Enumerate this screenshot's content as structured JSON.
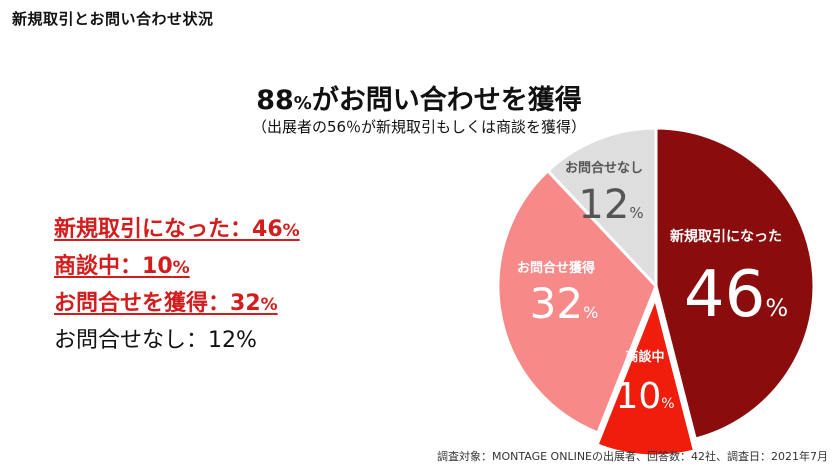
{
  "page": {
    "title": "新規取引とお問い合わせ状況",
    "headline_num": "88",
    "headline_pct": "%",
    "headline_rest": "がお問い合わせを獲得",
    "subhead": "（出展者の56％が新規取引もしくは商談を獲得）",
    "footer": "調査対象：MONTAGE ONLINEの出展者、回答数：42社、調査日：2021年7月"
  },
  "summary": [
    {
      "label": "新規取引になった：",
      "value": "46",
      "unit": "%",
      "style": "highlight"
    },
    {
      "label": "商談中：",
      "value": "10",
      "unit": "%",
      "style": "highlight"
    },
    {
      "label": "お問合せを獲得：",
      "value": "32",
      "unit": "%",
      "style": "highlight"
    },
    {
      "label": "お問合せなし：",
      "value": "12",
      "unit": "%",
      "style": "plain"
    }
  ],
  "chart_data": {
    "type": "pie",
    "start": "12 o'clock, clockwise",
    "slices": [
      {
        "label": "新規取引になった",
        "value": 46,
        "value_text": "46",
        "unit": "%",
        "color": "#8b0c0c",
        "text_color": "#ffffff",
        "exploded": false
      },
      {
        "label": "商談中",
        "value": 10,
        "value_text": "10",
        "unit": "%",
        "color": "#f01c0c",
        "text_color": "#ffffff",
        "exploded": true
      },
      {
        "label": "お問合せ獲得",
        "value": 32,
        "value_text": "32",
        "unit": "%",
        "color": "#f78a88",
        "text_color": "#ffffff",
        "exploded": false
      },
      {
        "label": "お問合せなし",
        "value": 12,
        "value_text": "12",
        "unit": "%",
        "color": "#dedede",
        "text_color": "#555555",
        "exploded": false
      }
    ]
  }
}
